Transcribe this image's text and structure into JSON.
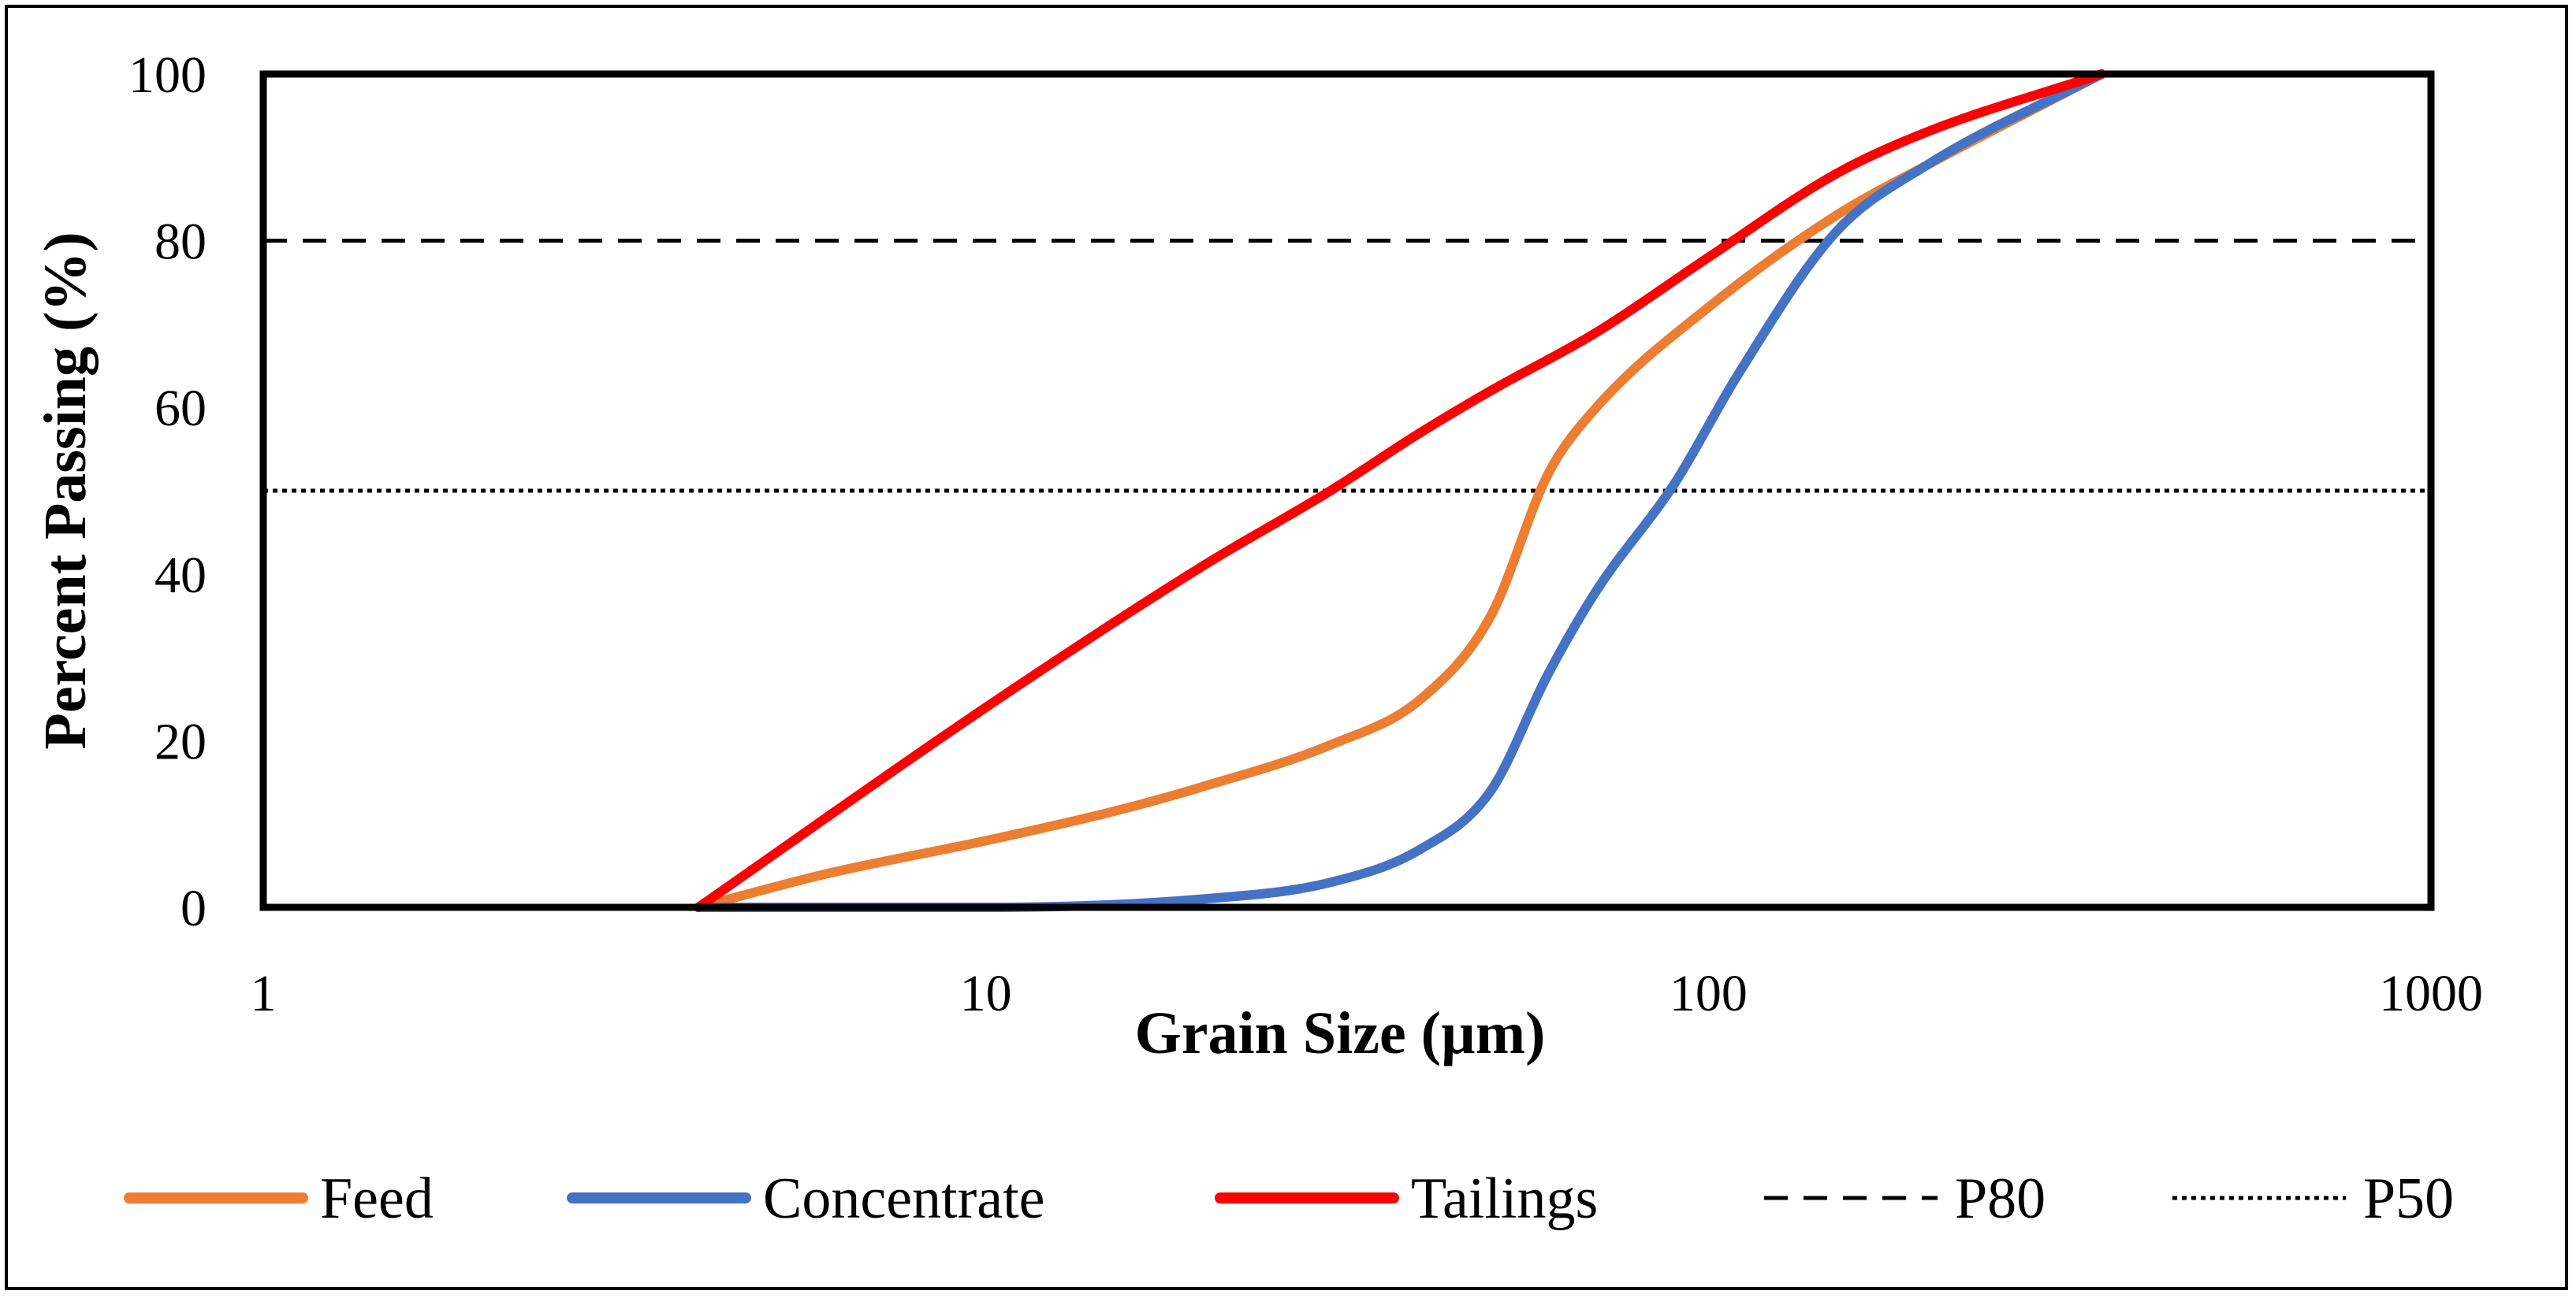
{
  "chart_data": {
    "type": "line",
    "title": "",
    "xlabel": "Grain Size (µm)",
    "ylabel": "Percent Passing (%)",
    "x_scale": "log",
    "xlim": [
      1,
      1000
    ],
    "ylim": [
      0,
      100
    ],
    "x_ticks": [
      "1",
      "10",
      "100",
      "1000"
    ],
    "x_tick_values": [
      1,
      10,
      100,
      1000
    ],
    "y_ticks": [
      "0",
      "20",
      "40",
      "60",
      "80",
      "100"
    ],
    "y_tick_values": [
      0,
      20,
      40,
      60,
      80,
      100
    ],
    "grid": false,
    "legend_position": "bottom",
    "series": [
      {
        "name": "Feed",
        "color": "#ED7D31",
        "style": "solid",
        "x": [
          4,
          6,
          10,
          15,
          20,
          30,
          40,
          50,
          60,
          70,
          100,
          150,
          200,
          350
        ],
        "y": [
          0,
          4,
          8,
          11.5,
          14.5,
          19.5,
          25,
          35,
          52,
          60,
          72,
          83,
          89,
          100
        ]
      },
      {
        "name": "Concentrate",
        "color": "#4472C4",
        "style": "solid",
        "x": [
          4,
          10,
          20,
          30,
          40,
          50,
          60,
          70,
          90,
          110,
          150,
          200,
          350
        ],
        "y": [
          0,
          0,
          1,
          3,
          7,
          14,
          28,
          38,
          51,
          64,
          81,
          89,
          100
        ]
      },
      {
        "name": "Tailings",
        "color": "#FF0000",
        "style": "solid",
        "x": [
          4,
          10,
          20,
          30,
          40,
          50,
          70,
          100,
          150,
          200,
          350
        ],
        "y": [
          0,
          24,
          41,
          50,
          57,
          62,
          69,
          78,
          88,
          93,
          100
        ]
      },
      {
        "name": "P80",
        "color": "#000000",
        "style": "dashed",
        "x": [
          1,
          1000
        ],
        "y": [
          80,
          80
        ]
      },
      {
        "name": "P50",
        "color": "#000000",
        "style": "dotted",
        "x": [
          1,
          1000
        ],
        "y": [
          50,
          50
        ]
      }
    ]
  }
}
